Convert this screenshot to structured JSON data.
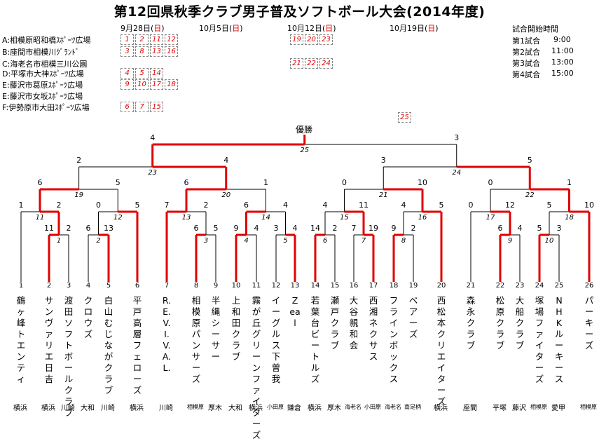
{
  "title": "第12回県秋季クラブ男子普及ソフトボール大会(2014年度)",
  "venues": [
    "A:相模原昭和橋ｽﾎﾟｰﾂ広場",
    "B:座間市相模川ｸﾞﾗﾝﾄﾞ",
    "C:海老名市相模三川公園",
    "D:平塚市大神ｽﾎﾟｰﾂ広場",
    "E:藤沢市葛原ｽﾎﾟｰﾂ広場",
    "E:藤沢市女坂ｽﾎﾟｰﾂ広場",
    "F:伊勢原市大田ｽﾎﾟｰﾂ広場"
  ],
  "dates": [
    {
      "prefix": "9月28日(",
      "day": "日",
      "suffix": ")"
    },
    {
      "prefix": "10月5日(",
      "day": "日",
      "suffix": ")"
    },
    {
      "prefix": "10月12日(",
      "day": "日",
      "suffix": ")"
    },
    {
      "prefix": "10月19日(",
      "day": "日",
      "suffix": ")"
    }
  ],
  "schedule": [
    {
      "venue": "A",
      "d1": [
        "1",
        "2",
        "11",
        "12"
      ],
      "d3": [
        "19",
        "20",
        "23"
      ]
    },
    {
      "venue": "B",
      "d1": [
        "3",
        "8",
        "13",
        "16"
      ],
      "d3": []
    },
    {
      "venue": "C",
      "d1": [],
      "d3": [
        "21",
        "22",
        "24"
      ]
    },
    {
      "venue": "D",
      "d1": [
        "4",
        "5",
        "14"
      ],
      "d3": []
    },
    {
      "venue": "E",
      "d1": [
        "9",
        "10",
        "17",
        "18"
      ],
      "d3": []
    },
    {
      "venue": "E2",
      "d1": [],
      "d3": []
    },
    {
      "venue": "F",
      "d1": [
        "6",
        "7",
        "15"
      ],
      "d3": []
    }
  ],
  "final_box": "25",
  "start_times": {
    "heading": "試合開始時間",
    "rows": [
      {
        "label": "第1試合",
        "time": "9:00"
      },
      {
        "label": "第2試合",
        "time": "11:00"
      },
      {
        "label": "第3試合",
        "time": "13:00"
      },
      {
        "label": "第4試合",
        "time": "15:00"
      }
    ]
  },
  "champion_label": "優勝",
  "teams": [
    {
      "num": "1",
      "name": "鶴ヶ峰トエンティ",
      "pref": "横浜"
    },
    {
      "num": "2",
      "name": "サンヴァリエ日吉",
      "pref": "横浜"
    },
    {
      "num": "3",
      "name": "渡田ソフトボールクラブ",
      "pref": "川崎"
    },
    {
      "num": "4",
      "name": "クロウズ",
      "pref": "大和"
    },
    {
      "num": "5",
      "name": "白山むじながクラブ",
      "pref": "川崎"
    },
    {
      "num": "6",
      "name": "平戸高層フェローズ",
      "pref": "横浜"
    },
    {
      "num": "7",
      "name": "R.E.V.I.V.A.L.",
      "pref": "川崎"
    },
    {
      "num": "8",
      "name": "相模原パンサーズ",
      "pref": "相模原"
    },
    {
      "num": "9",
      "name": "半縄シーサー",
      "pref": "厚木"
    },
    {
      "num": "10",
      "name": "上和田クラブ",
      "pref": "大和"
    },
    {
      "num": "11",
      "name": "霧が丘グリーンファイターズ",
      "pref": "横浜"
    },
    {
      "num": "12",
      "name": "イーグルス下曽我",
      "pref": "小田原"
    },
    {
      "num": "13",
      "name": "Zeal",
      "pref": "鎌倉"
    },
    {
      "num": "14",
      "name": "若葉台ビートルズ",
      "pref": "横浜"
    },
    {
      "num": "15",
      "name": "瀬戸クラブ",
      "pref": "厚木"
    },
    {
      "num": "16",
      "name": "大谷親和会",
      "pref": "海老名"
    },
    {
      "num": "17",
      "name": "西湘ネクサス",
      "pref": "小田原"
    },
    {
      "num": "18",
      "name": "フラインボックス",
      "pref": "海老名"
    },
    {
      "num": "19",
      "name": "ベアーズ",
      "pref": "南足柄"
    },
    {
      "num": "20",
      "name": "西松本クリエイターズ",
      "pref": "横浜"
    },
    {
      "num": "21",
      "name": "森永クラブ",
      "pref": "座間"
    },
    {
      "num": "22",
      "name": "松原クラブ",
      "pref": "平塚"
    },
    {
      "num": "23",
      "name": "大船クラブ",
      "pref": "藤沢"
    },
    {
      "num": "24",
      "name": "塚場ファイターズ",
      "pref": "相模原"
    },
    {
      "num": "25",
      "name": "NHKルーキース",
      "pref": "愛甲"
    },
    {
      "num": "26",
      "name": "パーキーズ",
      "pref": "相模原"
    }
  ],
  "matches": [
    {
      "id": "1",
      "a": "11",
      "b": "2"
    },
    {
      "id": "2",
      "a": "6",
      "b": "13"
    },
    {
      "id": "3",
      "a": "6",
      "b": "5"
    },
    {
      "id": "4",
      "a": "9",
      "b": "4"
    },
    {
      "id": "5",
      "a": "3",
      "b": "4"
    },
    {
      "id": "6",
      "a": "14",
      "b": "2"
    },
    {
      "id": "7",
      "a": "7",
      "b": "19"
    },
    {
      "id": "8",
      "a": "9",
      "b": "2"
    },
    {
      "id": "9",
      "a": "6",
      "b": "4"
    },
    {
      "id": "10",
      "a": "5",
      "b": "3"
    },
    {
      "id": "11",
      "a": "1",
      "b": "2"
    },
    {
      "id": "12",
      "a": "0",
      "b": "5"
    },
    {
      "id": "13",
      "a": "7",
      "b": "2"
    },
    {
      "id": "14",
      "a": "6",
      "b": "4"
    },
    {
      "id": "15",
      "a": "4",
      "b": "11"
    },
    {
      "id": "16",
      "a": "4",
      "b": "5"
    },
    {
      "id": "17",
      "a": "0",
      "b": "12"
    },
    {
      "id": "18",
      "a": "5",
      "b": "10"
    },
    {
      "id": "19",
      "a": "6",
      "b": "5"
    },
    {
      "id": "20",
      "a": "6",
      "b": "1"
    },
    {
      "id": "21",
      "a": "0",
      "b": "10"
    },
    {
      "id": "22",
      "a": "0",
      "b": "1"
    },
    {
      "id": "23",
      "a": "2",
      "b": "4"
    },
    {
      "id": "24",
      "a": "3",
      "b": "5"
    },
    {
      "id": "25",
      "a": "4",
      "b": "3"
    }
  ],
  "colors": {
    "winner_line": "#e00000",
    "loser_line": "#000000",
    "box_border": "#888888"
  }
}
